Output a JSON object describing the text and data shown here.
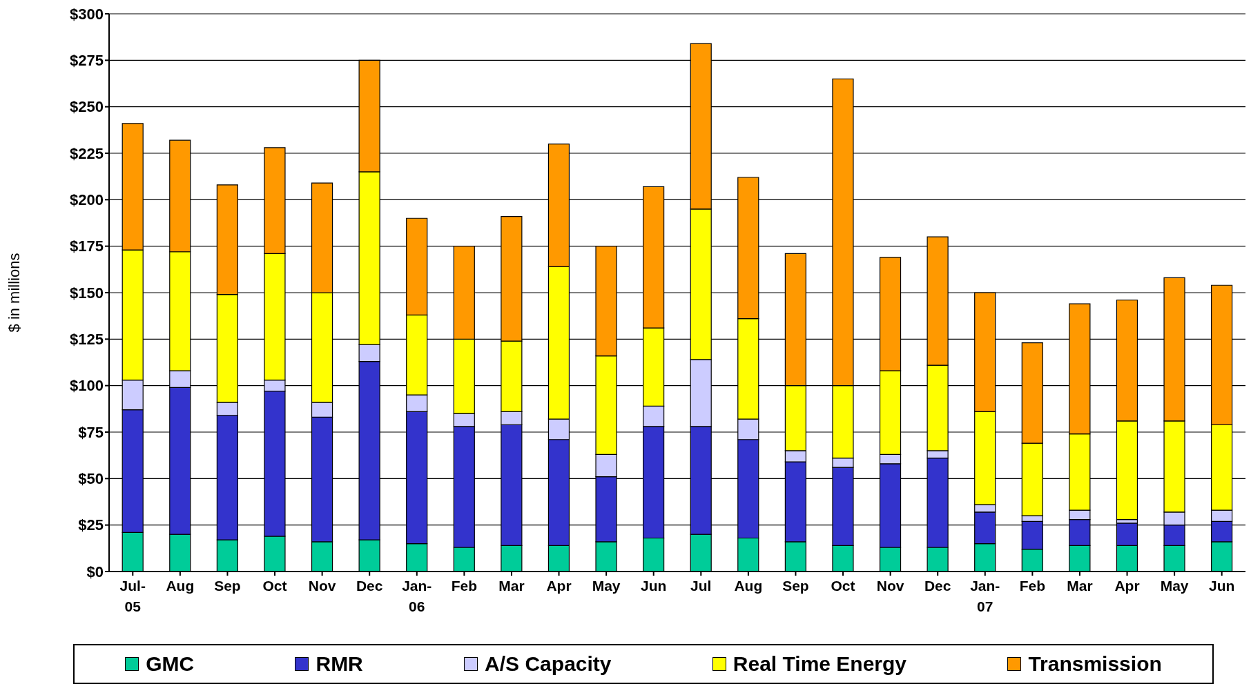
{
  "chart_data": {
    "type": "bar",
    "stacked": true,
    "ylabel": "$ in millions",
    "categories": [
      "Jul-05",
      "Aug",
      "Sep",
      "Oct",
      "Nov",
      "Dec",
      "Jan-06",
      "Feb",
      "Mar",
      "Apr",
      "May",
      "Jun",
      "Jul",
      "Aug",
      "Sep",
      "Oct",
      "Nov",
      "Dec",
      "Jan-07",
      "Feb",
      "Mar",
      "Apr",
      "May",
      "Jun"
    ],
    "series": [
      {
        "name": "GMC",
        "color": "#00cc99",
        "values": [
          21,
          20,
          17,
          19,
          16,
          17,
          15,
          13,
          14,
          14,
          16,
          18,
          20,
          18,
          16,
          14,
          13,
          13,
          15,
          12,
          14,
          14,
          14,
          16
        ]
      },
      {
        "name": "RMR",
        "color": "#3333cc",
        "values": [
          66,
          79,
          67,
          78,
          67,
          96,
          71,
          65,
          65,
          57,
          35,
          60,
          58,
          53,
          43,
          42,
          45,
          48,
          17,
          15,
          14,
          12,
          11,
          11
        ]
      },
      {
        "name": "A/S Capacity",
        "color": "#ccccff",
        "values": [
          16,
          9,
          7,
          6,
          8,
          9,
          9,
          7,
          7,
          11,
          12,
          11,
          36,
          11,
          6,
          5,
          5,
          4,
          4,
          3,
          5,
          2,
          7,
          6
        ]
      },
      {
        "name": "Real Time Energy",
        "color": "#ffff00",
        "values": [
          70,
          64,
          58,
          68,
          59,
          93,
          43,
          40,
          38,
          82,
          53,
          42,
          81,
          54,
          35,
          39,
          45,
          46,
          50,
          39,
          41,
          53,
          49,
          46
        ]
      },
      {
        "name": "Transmission",
        "color": "#ff9900",
        "values": [
          68,
          60,
          59,
          57,
          59,
          60,
          52,
          50,
          67,
          66,
          59,
          76,
          89,
          76,
          71,
          165,
          61,
          69,
          64,
          54,
          70,
          65,
          77,
          75
        ]
      }
    ],
    "ylim": [
      0,
      300
    ],
    "yticks": [
      {
        "value": 0,
        "label": "$0"
      },
      {
        "value": 25,
        "label": "$25"
      },
      {
        "value": 50,
        "label": "$50"
      },
      {
        "value": 75,
        "label": "$75"
      },
      {
        "value": 100,
        "label": "$100"
      },
      {
        "value": 125,
        "label": "$125"
      },
      {
        "value": 150,
        "label": "$150"
      },
      {
        "value": 175,
        "label": "$175"
      },
      {
        "value": 200,
        "label": "$200"
      },
      {
        "value": 225,
        "label": "$225"
      },
      {
        "value": 250,
        "label": "$250"
      },
      {
        "value": 275,
        "label": "$275"
      },
      {
        "value": 300,
        "label": "$300"
      }
    ],
    "grid": "y",
    "legend": "bottom"
  }
}
